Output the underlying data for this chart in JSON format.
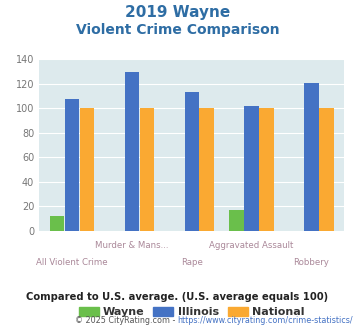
{
  "title_line1": "2019 Wayne",
  "title_line2": "Violent Crime Comparison",
  "categories": [
    "All Violent Crime",
    "Murder & Mans...",
    "Rape",
    "Aggravated Assault",
    "Robbery"
  ],
  "wayne_values": [
    12,
    0,
    0,
    17,
    0
  ],
  "illinois_values": [
    108,
    130,
    113,
    102,
    121
  ],
  "national_values": [
    100,
    100,
    100,
    100,
    100
  ],
  "wayne_color": "#6abf4b",
  "illinois_color": "#4472c4",
  "national_color": "#faa932",
  "ylim": [
    0,
    140
  ],
  "yticks": [
    0,
    20,
    40,
    60,
    80,
    100,
    120,
    140
  ],
  "bg_color": "#ddeaed",
  "footer_text": "Compared to U.S. average. (U.S. average equals 100)",
  "copyright_prefix": "© 2025 CityRating.com - ",
  "copyright_url": "https://www.cityrating.com/crime-statistics/",
  "title_color": "#2e6da4",
  "footer_color": "#222222",
  "copyright_color": "#555555",
  "url_color": "#4472c4"
}
